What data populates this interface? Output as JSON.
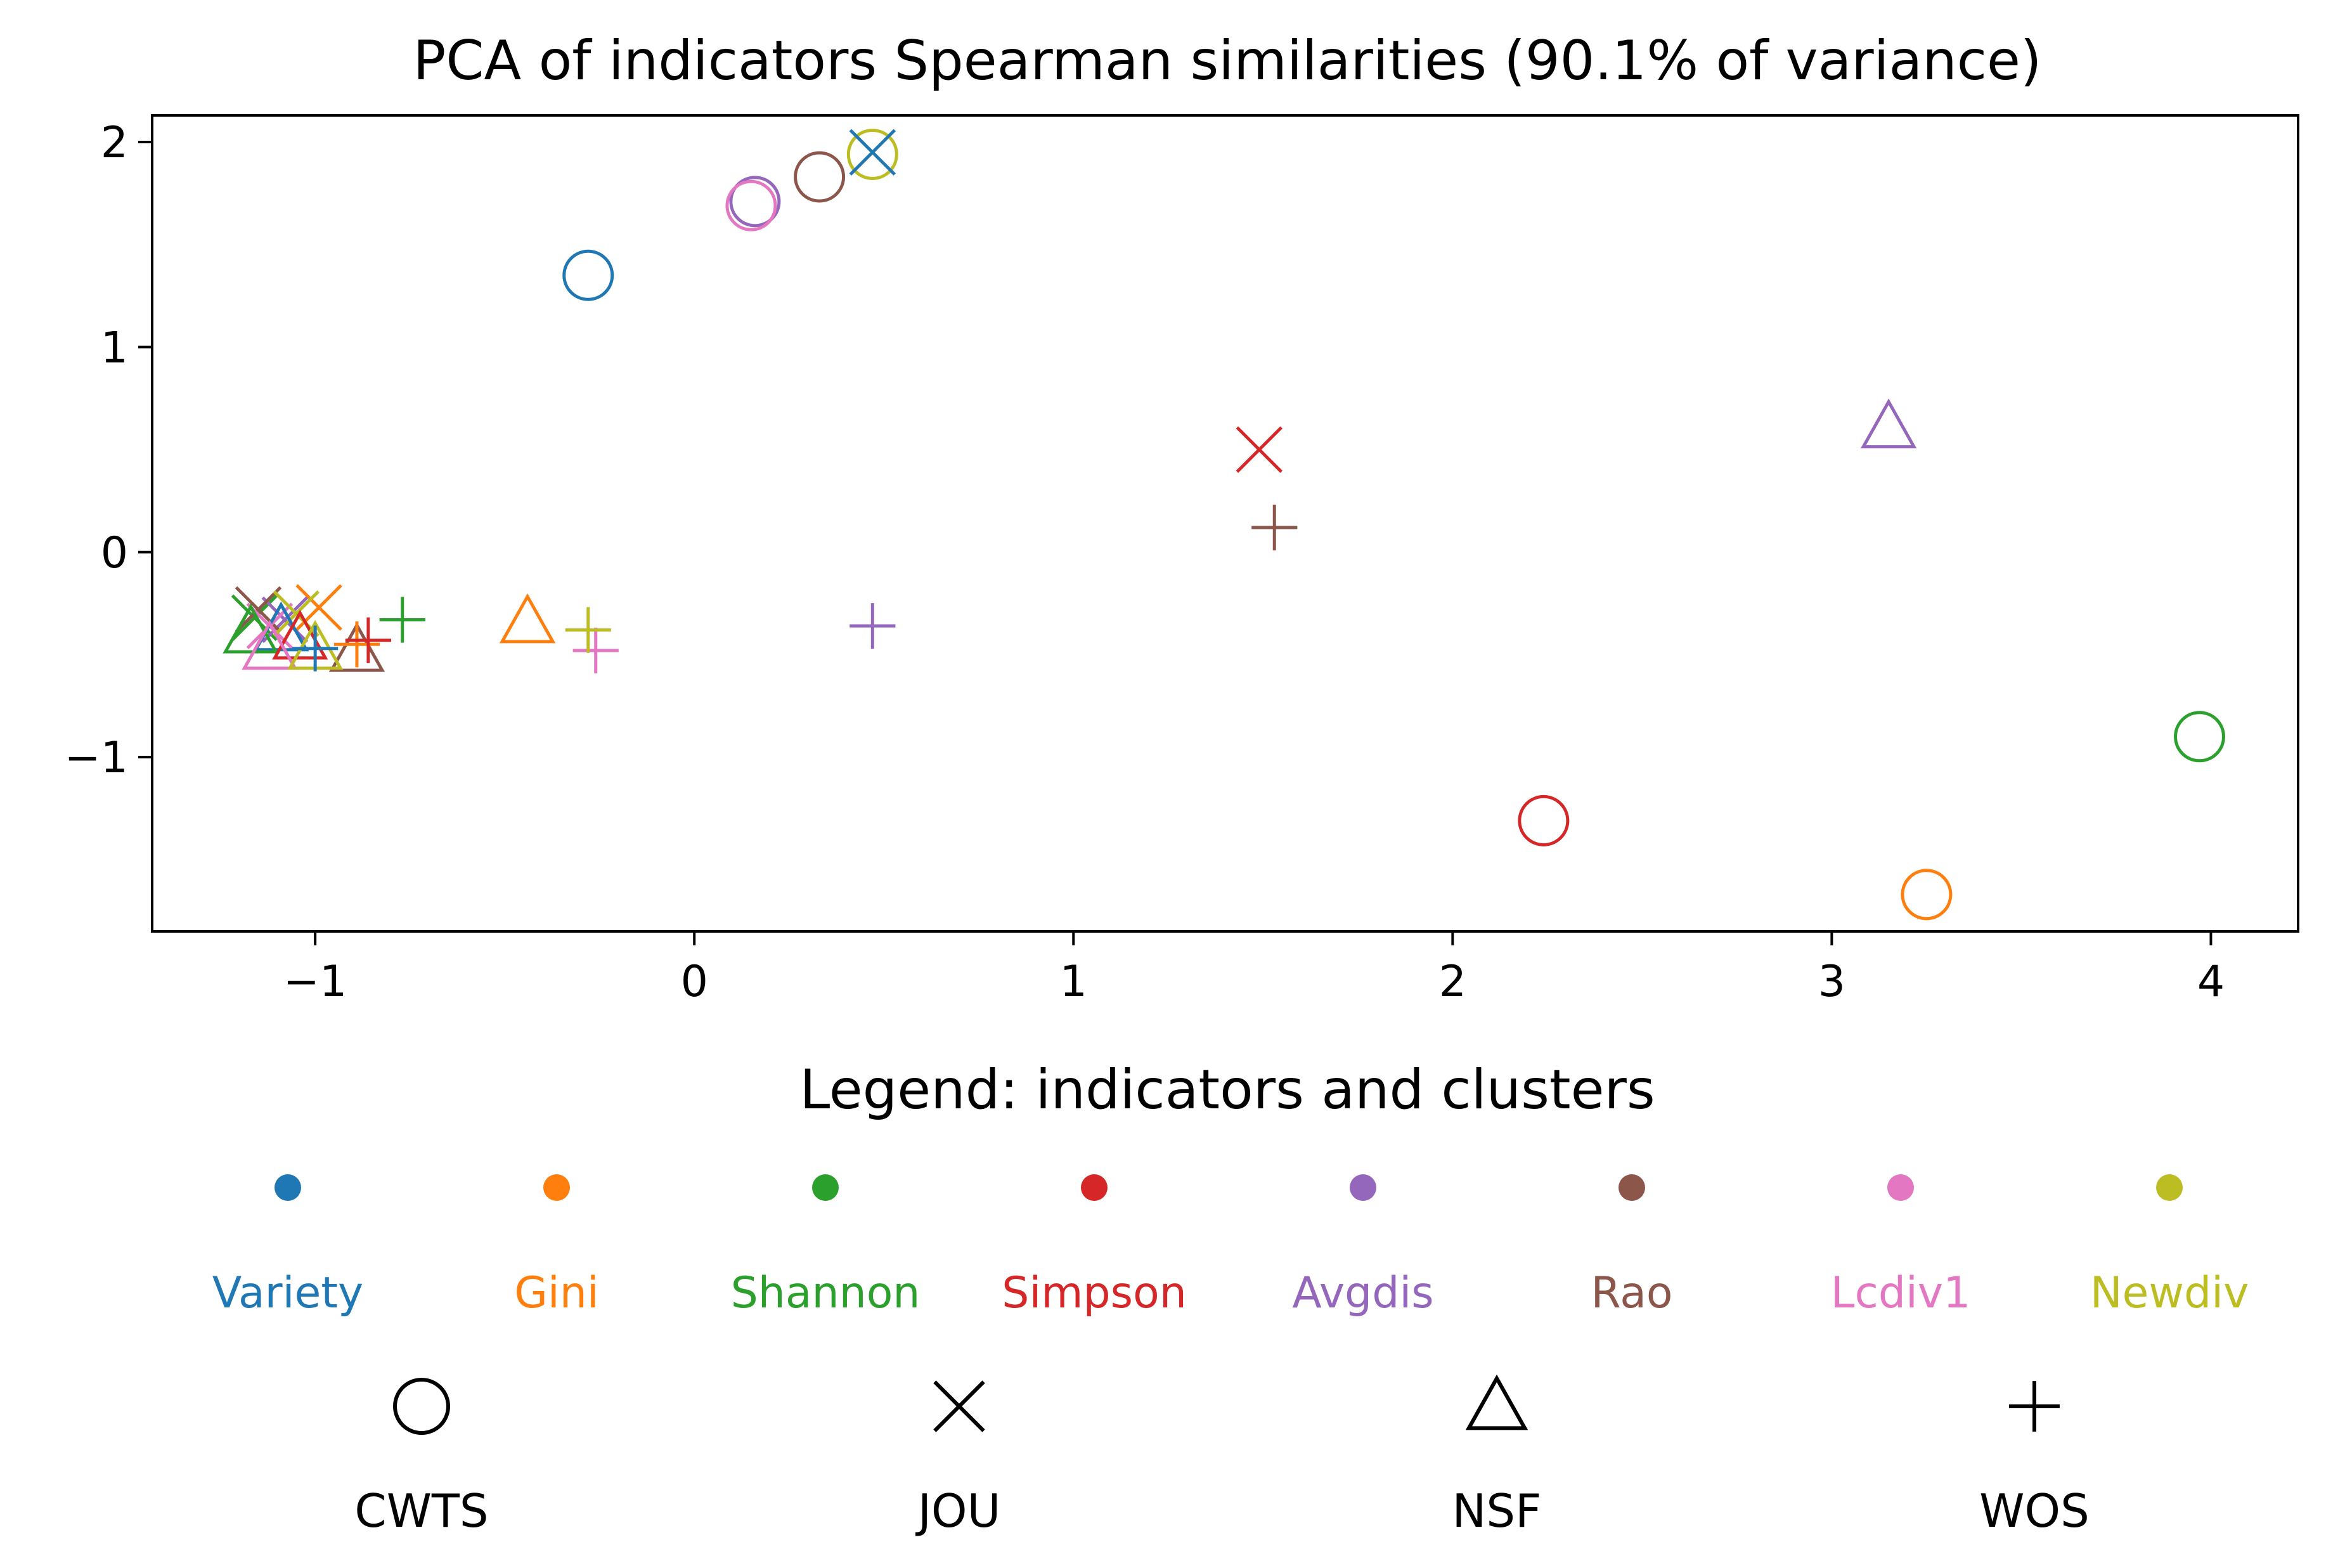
{
  "chart_data": {
    "type": "scatter",
    "title": "PCA of indicators Spearman similarities (90.1% of variance)",
    "xlabel": "",
    "ylabel": "",
    "xlim": [
      -1.43,
      4.23
    ],
    "ylim": [
      -1.85,
      2.13
    ],
    "xticks": [
      -1,
      0,
      1,
      2,
      3,
      4
    ],
    "yticks": [
      -1,
      0,
      1,
      2
    ],
    "xtick_labels": [
      "−1",
      "0",
      "1",
      "2",
      "3",
      "4"
    ],
    "ytick_labels": [
      "−1",
      "0",
      "1",
      "2"
    ],
    "grid": false,
    "indicators": [
      {
        "name": "Variety",
        "color": "#1f77b4"
      },
      {
        "name": "Gini",
        "color": "#ff7f0e"
      },
      {
        "name": "Shannon",
        "color": "#2ca02c"
      },
      {
        "name": "Simpson",
        "color": "#d62728"
      },
      {
        "name": "Avgdis",
        "color": "#9467bd"
      },
      {
        "name": "Rao",
        "color": "#8c564b"
      },
      {
        "name": "Lcdiv1",
        "color": "#e377c2"
      },
      {
        "name": "Newdiv",
        "color": "#bcbd22"
      }
    ],
    "clusters": [
      {
        "name": "CWTS",
        "marker": "circle"
      },
      {
        "name": "JOU",
        "marker": "x"
      },
      {
        "name": "NSF",
        "marker": "triangle"
      },
      {
        "name": "WOS",
        "marker": "plus"
      }
    ],
    "points": [
      {
        "indicator": "Variety",
        "cluster": "CWTS",
        "x": -0.28,
        "y": 1.35
      },
      {
        "indicator": "Gini",
        "cluster": "CWTS",
        "x": 3.25,
        "y": -1.67
      },
      {
        "indicator": "Shannon",
        "cluster": "CWTS",
        "x": 3.97,
        "y": -0.9
      },
      {
        "indicator": "Simpson",
        "cluster": "CWTS",
        "x": 2.24,
        "y": -1.31
      },
      {
        "indicator": "Avgdis",
        "cluster": "CWTS",
        "x": 0.16,
        "y": 1.71
      },
      {
        "indicator": "Rao",
        "cluster": "CWTS",
        "x": 0.33,
        "y": 1.83
      },
      {
        "indicator": "Lcdiv1",
        "cluster": "CWTS",
        "x": 0.15,
        "y": 1.69
      },
      {
        "indicator": "Newdiv",
        "cluster": "CWTS",
        "x": 0.47,
        "y": 1.94
      },
      {
        "indicator": "Variety",
        "cluster": "JOU",
        "x": 0.47,
        "y": 1.95
      },
      {
        "indicator": "Gini",
        "cluster": "JOU",
        "x": -0.99,
        "y": -0.27
      },
      {
        "indicator": "Shannon",
        "cluster": "JOU",
        "x": -1.16,
        "y": -0.32
      },
      {
        "indicator": "Simpson",
        "cluster": "JOU",
        "x": 1.49,
        "y": 0.5
      },
      {
        "indicator": "Avgdis",
        "cluster": "JOU",
        "x": -1.08,
        "y": -0.33
      },
      {
        "indicator": "Rao",
        "cluster": "JOU",
        "x": -1.15,
        "y": -0.28
      },
      {
        "indicator": "Lcdiv1",
        "cluster": "JOU",
        "x": -1.12,
        "y": -0.36
      },
      {
        "indicator": "Newdiv",
        "cluster": "JOU",
        "x": -1.05,
        "y": -0.3
      },
      {
        "indicator": "Variety",
        "cluster": "NSF",
        "x": -1.09,
        "y": -0.38
      },
      {
        "indicator": "Gini",
        "cluster": "NSF",
        "x": -0.44,
        "y": -0.34
      },
      {
        "indicator": "Shannon",
        "cluster": "NSF",
        "x": -1.17,
        "y": -0.39
      },
      {
        "indicator": "Simpson",
        "cluster": "NSF",
        "x": -1.04,
        "y": -0.42
      },
      {
        "indicator": "Avgdis",
        "cluster": "NSF",
        "x": 3.15,
        "y": 0.61
      },
      {
        "indicator": "Rao",
        "cluster": "NSF",
        "x": -0.89,
        "y": -0.48
      },
      {
        "indicator": "Lcdiv1",
        "cluster": "NSF",
        "x": -1.12,
        "y": -0.47
      },
      {
        "indicator": "Newdiv",
        "cluster": "NSF",
        "x": -1.0,
        "y": -0.47
      },
      {
        "indicator": "Variety",
        "cluster": "WOS",
        "x": -1.0,
        "y": -0.47
      },
      {
        "indicator": "Gini",
        "cluster": "WOS",
        "x": -0.89,
        "y": -0.45
      },
      {
        "indicator": "Shannon",
        "cluster": "WOS",
        "x": -0.77,
        "y": -0.33
      },
      {
        "indicator": "Simpson",
        "cluster": "WOS",
        "x": -0.86,
        "y": -0.43
      },
      {
        "indicator": "Avgdis",
        "cluster": "WOS",
        "x": 0.47,
        "y": -0.36
      },
      {
        "indicator": "Rao",
        "cluster": "WOS",
        "x": 1.53,
        "y": 0.12
      },
      {
        "indicator": "Lcdiv1",
        "cluster": "WOS",
        "x": -0.26,
        "y": -0.48
      },
      {
        "indicator": "Newdiv",
        "cluster": "WOS",
        "x": -0.28,
        "y": -0.38
      }
    ]
  },
  "legend": {
    "title": "Legend: indicators and clusters",
    "cluster_marker_color": "#000000"
  }
}
